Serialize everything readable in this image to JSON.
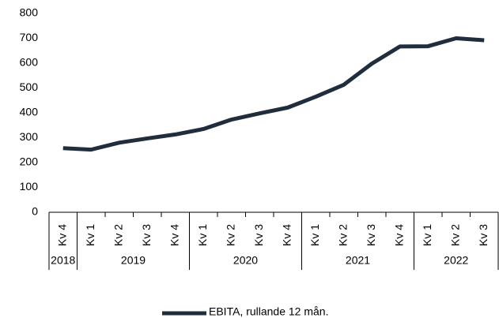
{
  "chart_data": {
    "type": "line",
    "categories": [
      "Kv 4",
      "Kv 1",
      "Kv 2",
      "Kv 3",
      "Kv 4",
      "Kv 1",
      "Kv 2",
      "Kv 3",
      "Kv 4",
      "Kv 1",
      "Kv 2",
      "Kv 3",
      "Kv 4",
      "Kv 1",
      "Kv 2",
      "Kv 3"
    ],
    "category_groups": [
      {
        "label": "2018",
        "span": 1
      },
      {
        "label": "2019",
        "span": 4
      },
      {
        "label": "2020",
        "span": 4
      },
      {
        "label": "2021",
        "span": 4
      },
      {
        "label": "2022",
        "span": 3
      }
    ],
    "series": [
      {
        "name": "EBITA, rullande 12 mån.",
        "color": "#1f2d3d",
        "values": [
          258,
          252,
          280,
          297,
          313,
          335,
          373,
          398,
          421,
          465,
          513,
          598,
          667,
          668,
          700,
          692
        ]
      }
    ],
    "ylim": [
      0,
      800
    ],
    "yticks": [
      0,
      100,
      200,
      300,
      400,
      500,
      600,
      700,
      800
    ],
    "grid": false,
    "legend": "bottom"
  }
}
